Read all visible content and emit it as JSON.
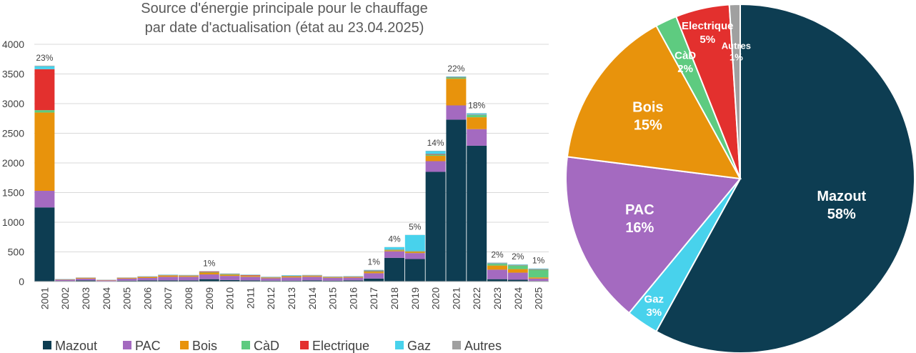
{
  "chart_data": [
    {
      "type": "bar",
      "stacked": true,
      "title": "Source d'énergie principale pour le chauffage",
      "subtitle": "par date d'actualisation (état au 23.04.2025)",
      "categories": [
        "2001",
        "2002",
        "2003",
        "2004",
        "2005",
        "2006",
        "2007",
        "2008",
        "2009",
        "2010",
        "2011",
        "2012",
        "2013",
        "2014",
        "2015",
        "2016",
        "2017",
        "2018",
        "2019",
        "2020",
        "2021",
        "2022",
        "2023",
        "2024",
        "2025"
      ],
      "ylim": [
        0,
        4000
      ],
      "yticks": [
        "0",
        "500",
        "1000",
        "1500",
        "2000",
        "2500",
        "3000",
        "3500",
        "4000"
      ],
      "grid": true,
      "legend_position": "bottom",
      "series": [
        {
          "name": "Mazout",
          "color": "#0d3d52",
          "values": [
            1250,
            10,
            20,
            5,
            15,
            20,
            20,
            20,
            40,
            25,
            20,
            15,
            15,
            20,
            15,
            20,
            50,
            400,
            380,
            1850,
            2730,
            2290,
            40,
            30,
            10
          ]
        },
        {
          "name": "PAC",
          "color": "#a46ac0",
          "values": [
            280,
            20,
            30,
            15,
            35,
            40,
            60,
            60,
            80,
            70,
            60,
            40,
            55,
            60,
            45,
            45,
            90,
            110,
            100,
            180,
            240,
            280,
            160,
            120,
            40
          ]
        },
        {
          "name": "Bois",
          "color": "#e8930c",
          "values": [
            1320,
            5,
            10,
            5,
            10,
            15,
            20,
            15,
            30,
            20,
            15,
            10,
            15,
            15,
            10,
            10,
            25,
            15,
            20,
            90,
            450,
            200,
            70,
            60,
            20
          ]
        },
        {
          "name": "CàD",
          "color": "#5ecb80",
          "values": [
            40,
            2,
            2,
            1,
            2,
            3,
            5,
            5,
            8,
            10,
            5,
            5,
            5,
            5,
            5,
            5,
            10,
            10,
            10,
            20,
            20,
            40,
            30,
            60,
            130
          ]
        },
        {
          "name": "Electrique",
          "color": "#e3302e",
          "values": [
            690,
            2,
            3,
            2,
            3,
            5,
            5,
            5,
            10,
            5,
            10,
            5,
            5,
            5,
            5,
            5,
            10,
            5,
            5,
            10,
            5,
            5,
            5,
            5,
            5
          ]
        },
        {
          "name": "Gaz",
          "color": "#48d2ec",
          "values": [
            50,
            3,
            3,
            2,
            3,
            5,
            5,
            5,
            5,
            5,
            5,
            5,
            10,
            5,
            5,
            5,
            10,
            40,
            270,
            50,
            10,
            20,
            10,
            10,
            10
          ]
        },
        {
          "name": "Autres",
          "color": "#a0a0a0",
          "values": [
            10,
            1,
            1,
            1,
            1,
            2,
            2,
            2,
            2,
            2,
            2,
            2,
            2,
            2,
            2,
            2,
            2,
            2,
            2,
            5,
            5,
            5,
            5,
            5,
            5
          ]
        }
      ],
      "annotations": [
        {
          "category": "2001",
          "text": "23%"
        },
        {
          "category": "2009",
          "text": "1%"
        },
        {
          "category": "2017",
          "text": "1%"
        },
        {
          "category": "2018",
          "text": "4%"
        },
        {
          "category": "2019",
          "text": "5%"
        },
        {
          "category": "2020",
          "text": "14%"
        },
        {
          "category": "2021",
          "text": "22%"
        },
        {
          "category": "2022",
          "text": "18%"
        },
        {
          "category": "2023",
          "text": "2%"
        },
        {
          "category": "2024",
          "text": "2%"
        },
        {
          "category": "2025",
          "text": "1%"
        }
      ]
    },
    {
      "type": "pie",
      "slices": [
        {
          "name": "Mazout",
          "value": 58,
          "label": "58%",
          "color": "#0d3d52"
        },
        {
          "name": "Gaz",
          "value": 3,
          "label": "3%",
          "color": "#48d2ec"
        },
        {
          "name": "PAC",
          "value": 16,
          "label": "16%",
          "color": "#a46ac0"
        },
        {
          "name": "Bois",
          "value": 15,
          "label": "15%",
          "color": "#e8930c"
        },
        {
          "name": "CàD",
          "value": 2,
          "label": "2%",
          "color": "#5ecb80"
        },
        {
          "name": "Electrique",
          "value": 5,
          "label": "5%",
          "color": "#e3302e"
        },
        {
          "name": "Autres",
          "value": 1,
          "label": "1%",
          "color": "#a0a0a0"
        }
      ]
    }
  ]
}
